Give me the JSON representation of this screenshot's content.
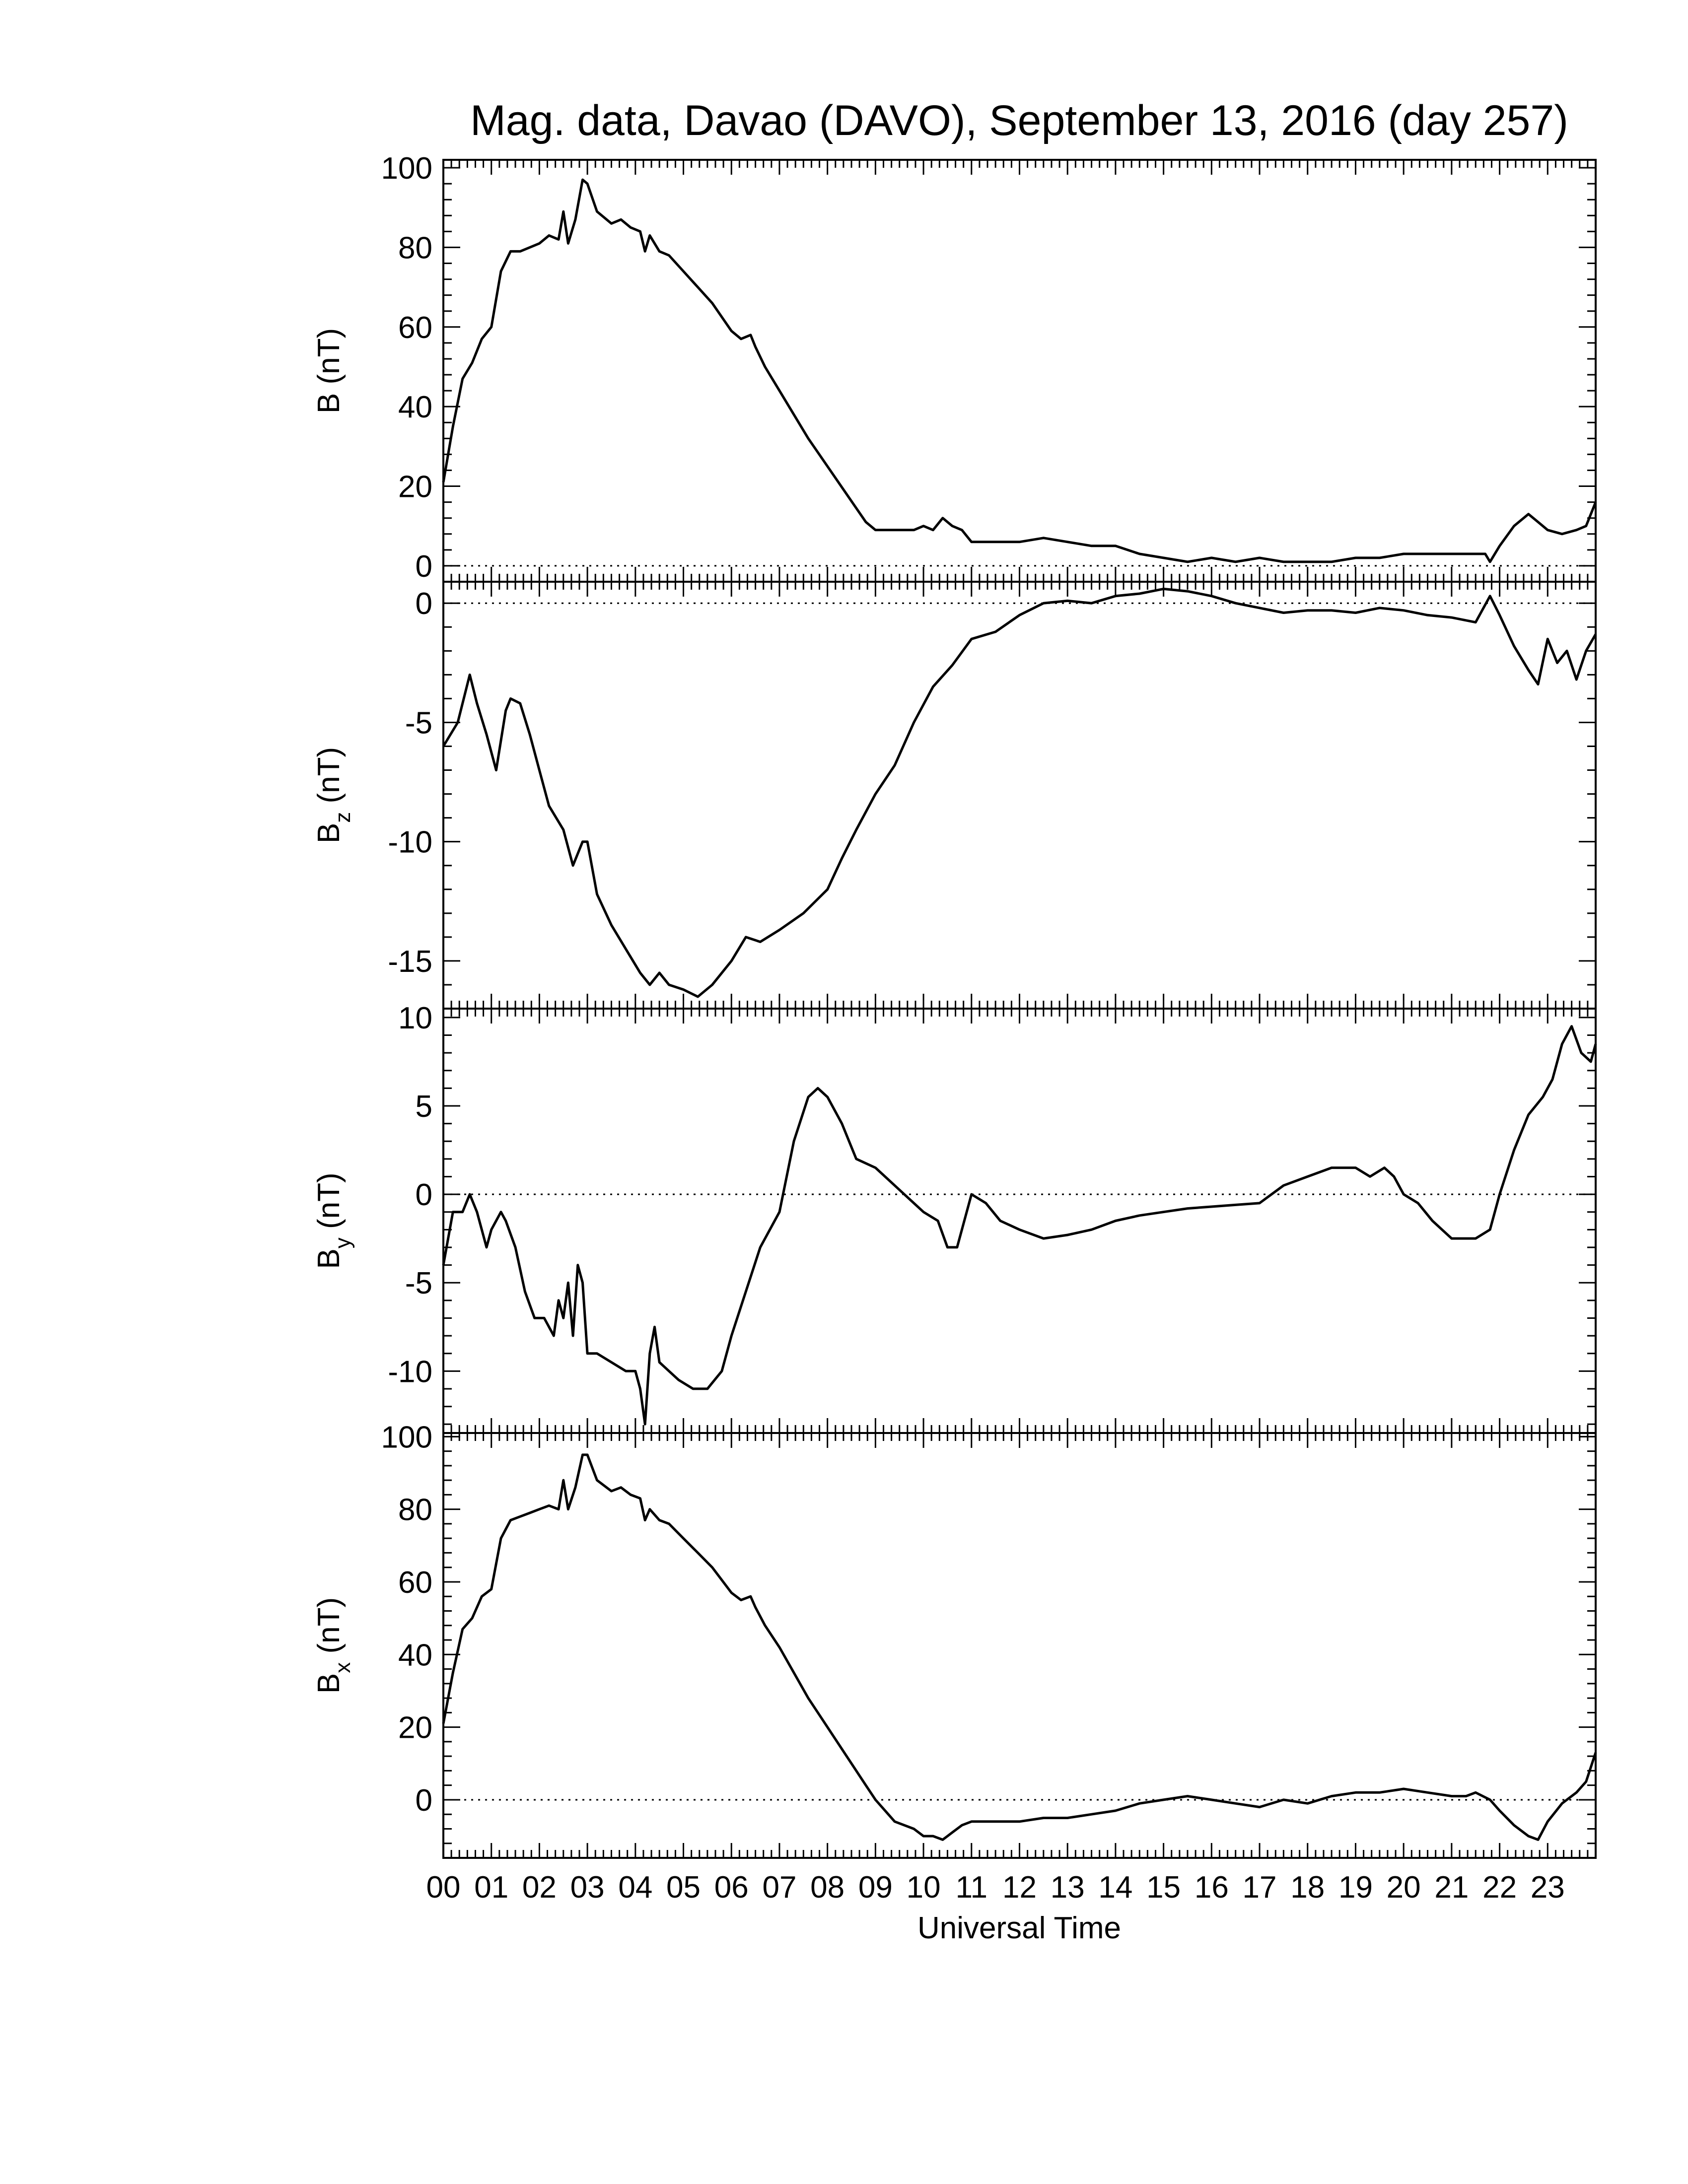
{
  "title": "Mag. data, Davao (DAVO), September 13, 2016 (day 257)",
  "xlabel": "Universal Time",
  "x_tick_labels": [
    "00",
    "01",
    "02",
    "03",
    "04",
    "05",
    "06",
    "07",
    "08",
    "09",
    "10",
    "11",
    "12",
    "13",
    "14",
    "15",
    "16",
    "17",
    "18",
    "19",
    "20",
    "21",
    "22",
    "23"
  ],
  "chart_data": [
    {
      "type": "line",
      "panel": "B",
      "ylabel": "B (nT)",
      "ylabel_main": "B",
      "ylabel_sub": "",
      "ylabel_unit": " (nT)",
      "xlim": [
        0,
        24
      ],
      "ylim": [
        -4,
        102
      ],
      "yticks": [
        0,
        20,
        40,
        60,
        80,
        100
      ],
      "zero_line": true,
      "series": [
        {
          "x": [
            0,
            0.2,
            0.4,
            0.6,
            0.8,
            1.0,
            1.2,
            1.4,
            1.6,
            1.8,
            2.0,
            2.2,
            2.4,
            2.5,
            2.6,
            2.75,
            2.9,
            3.0,
            3.2,
            3.5,
            3.7,
            3.9,
            4.1,
            4.2,
            4.3,
            4.5,
            4.7,
            5.0,
            5.3,
            5.6,
            6.0,
            6.2,
            6.4,
            6.5,
            6.7,
            7.0,
            7.3,
            7.6,
            8.0,
            8.4,
            8.8,
            9.0,
            9.4,
            9.8,
            10.0,
            10.2,
            10.4,
            10.6,
            10.8,
            11.0,
            11.5,
            12.0,
            12.5,
            13.0,
            13.5,
            14.0,
            14.5,
            15.0,
            15.5,
            16.0,
            16.5,
            17.0,
            17.5,
            18.0,
            18.5,
            19.0,
            19.5,
            20.0,
            20.5,
            21.0,
            21.5,
            21.7,
            21.8,
            22.0,
            22.3,
            22.6,
            22.8,
            23.0,
            23.3,
            23.6,
            23.8,
            24.0
          ],
          "y": [
            21,
            35,
            47,
            51,
            57,
            60,
            74,
            79,
            79,
            80,
            81,
            83,
            82,
            89,
            81,
            87,
            97,
            96,
            89,
            86,
            87,
            85,
            84,
            79,
            83,
            79,
            78,
            74,
            70,
            66,
            59,
            57,
            58,
            55,
            50,
            44,
            38,
            32,
            25,
            18,
            11,
            9,
            9,
            9,
            10,
            9,
            12,
            10,
            9,
            6,
            6,
            6,
            7,
            6,
            5,
            5,
            3,
            2,
            1,
            2,
            1,
            2,
            1,
            1,
            1,
            2,
            2,
            3,
            3,
            3,
            3,
            3,
            1,
            5,
            10,
            13,
            11,
            9,
            8,
            9,
            10,
            16
          ]
        }
      ]
    },
    {
      "type": "line",
      "panel": "Bz",
      "ylabel": "Bz (nT)",
      "ylabel_main": "B",
      "ylabel_sub": "z",
      "ylabel_unit": " (nT)",
      "xlim": [
        0,
        24
      ],
      "ylim": [
        -17,
        0.9
      ],
      "yticks": [
        -15,
        -10,
        -5,
        0
      ],
      "zero_line": true,
      "series": [
        {
          "x": [
            0,
            0.3,
            0.55,
            0.7,
            0.9,
            1.1,
            1.3,
            1.4,
            1.6,
            1.8,
            2.0,
            2.2,
            2.5,
            2.7,
            2.9,
            3.0,
            3.2,
            3.5,
            3.8,
            4.1,
            4.3,
            4.5,
            4.7,
            5.0,
            5.3,
            5.6,
            6.0,
            6.3,
            6.6,
            7.0,
            7.5,
            8.0,
            8.3,
            8.6,
            9.0,
            9.4,
            9.8,
            10.2,
            10.6,
            11.0,
            11.5,
            12.0,
            12.5,
            13.0,
            13.5,
            14.0,
            14.5,
            15.0,
            15.5,
            16.0,
            16.5,
            17.0,
            17.5,
            18.0,
            18.5,
            19.0,
            19.5,
            20.0,
            20.5,
            21.0,
            21.5,
            21.8,
            22.0,
            22.3,
            22.6,
            22.8,
            23.0,
            23.2,
            23.4,
            23.6,
            23.8,
            24.0
          ],
          "y": [
            -6,
            -5,
            -3,
            -4.2,
            -5.5,
            -7,
            -4.5,
            -4,
            -4.2,
            -5.5,
            -7,
            -8.5,
            -9.5,
            -11,
            -10,
            -10,
            -12.2,
            -13.5,
            -14.5,
            -15.5,
            -16,
            -15.5,
            -16,
            -16.2,
            -16.5,
            -16,
            -15,
            -14,
            -14.2,
            -13.7,
            -13,
            -12,
            -10.7,
            -9.5,
            -8,
            -6.8,
            -5,
            -3.5,
            -2.6,
            -1.5,
            -1.2,
            -0.5,
            0,
            0.1,
            0,
            0.3,
            0.4,
            0.6,
            0.5,
            0.3,
            0,
            -0.2,
            -0.4,
            -0.3,
            -0.3,
            -0.4,
            -0.2,
            -0.3,
            -0.5,
            -0.6,
            -0.8,
            0.3,
            -0.5,
            -1.8,
            -2.8,
            -3.4,
            -1.5,
            -2.5,
            -2,
            -3.2,
            -2,
            -1.3
          ]
        }
      ]
    },
    {
      "type": "line",
      "panel": "By",
      "ylabel": "By (nT)",
      "ylabel_main": "B",
      "ylabel_sub": "y",
      "ylabel_unit": " (nT)",
      "xlim": [
        0,
        24
      ],
      "ylim": [
        -13.5,
        10.5
      ],
      "yticks": [
        -10,
        -5,
        0,
        5,
        10
      ],
      "zero_line": true,
      "series": [
        {
          "x": [
            0,
            0.2,
            0.4,
            0.55,
            0.7,
            0.9,
            1.0,
            1.2,
            1.3,
            1.5,
            1.7,
            1.9,
            2.1,
            2.3,
            2.4,
            2.5,
            2.6,
            2.7,
            2.8,
            2.9,
            3.0,
            3.2,
            3.5,
            3.8,
            4.0,
            4.1,
            4.2,
            4.3,
            4.4,
            4.5,
            4.7,
            4.9,
            5.2,
            5.5,
            5.8,
            6.0,
            6.3,
            6.6,
            7.0,
            7.3,
            7.6,
            7.8,
            8.0,
            8.3,
            8.6,
            9.0,
            9.4,
            9.8,
            10.0,
            10.3,
            10.5,
            10.7,
            11.0,
            11.3,
            11.6,
            12.0,
            12.5,
            13.0,
            13.5,
            14.0,
            14.5,
            15.0,
            15.5,
            16.0,
            16.5,
            17.0,
            17.5,
            18.0,
            18.5,
            19.0,
            19.3,
            19.6,
            19.8,
            20.0,
            20.3,
            20.6,
            21.0,
            21.5,
            21.8,
            22.0,
            22.3,
            22.6,
            22.9,
            23.1,
            23.3,
            23.5,
            23.7,
            23.9,
            24.0
          ],
          "y": [
            -4,
            -1,
            -1,
            0,
            -1,
            -3,
            -2,
            -1,
            -1.5,
            -3,
            -5.5,
            -7,
            -7,
            -8,
            -6,
            -7,
            -5,
            -8,
            -4,
            -5,
            -9,
            -9,
            -9.5,
            -10,
            -10,
            -11,
            -13,
            -9,
            -7.5,
            -9.5,
            -10,
            -10.5,
            -11,
            -11,
            -10,
            -8,
            -5.5,
            -3,
            -1,
            3,
            5.5,
            6,
            5.5,
            4,
            2,
            1.5,
            0.5,
            -0.5,
            -1,
            -1.5,
            -3,
            -3,
            0,
            -0.5,
            -1.5,
            -2,
            -2.5,
            -2.3,
            -2,
            -1.5,
            -1.2,
            -1,
            -0.8,
            -0.7,
            -0.6,
            -0.5,
            0.5,
            1,
            1.5,
            1.5,
            1,
            1.5,
            1,
            0,
            -0.5,
            -1.5,
            -2.5,
            -2.5,
            -2,
            0,
            2.5,
            4.5,
            5.5,
            6.5,
            8.5,
            9.5,
            8,
            7.5,
            8.5
          ]
        }
      ]
    },
    {
      "type": "line",
      "panel": "Bx",
      "ylabel": "Bx (nT)",
      "ylabel_main": "B",
      "ylabel_sub": "x",
      "ylabel_unit": " (nT)",
      "xlim": [
        0,
        24
      ],
      "ylim": [
        -16,
        101
      ],
      "yticks": [
        0,
        20,
        40,
        60,
        80,
        100
      ],
      "zero_line": true,
      "series": [
        {
          "x": [
            0,
            0.2,
            0.4,
            0.6,
            0.8,
            1.0,
            1.2,
            1.4,
            1.6,
            1.8,
            2.0,
            2.2,
            2.4,
            2.5,
            2.6,
            2.75,
            2.9,
            3.0,
            3.2,
            3.5,
            3.7,
            3.9,
            4.1,
            4.2,
            4.3,
            4.5,
            4.7,
            5.0,
            5.3,
            5.6,
            6.0,
            6.2,
            6.4,
            6.5,
            6.7,
            7.0,
            7.3,
            7.6,
            8.0,
            8.4,
            8.8,
            9.0,
            9.4,
            9.8,
            10.0,
            10.2,
            10.4,
            10.6,
            10.8,
            11.0,
            11.5,
            12.0,
            12.5,
            13.0,
            13.5,
            14.0,
            14.5,
            15.0,
            15.5,
            16.0,
            16.5,
            17.0,
            17.5,
            18.0,
            18.5,
            19.0,
            19.5,
            20.0,
            20.5,
            21.0,
            21.3,
            21.5,
            21.8,
            22.0,
            22.3,
            22.6,
            22.8,
            23.0,
            23.3,
            23.6,
            23.8,
            24.0
          ],
          "y": [
            21,
            35,
            47,
            50,
            56,
            58,
            72,
            77,
            78,
            79,
            80,
            81,
            80,
            88,
            80,
            86,
            95,
            95,
            88,
            85,
            86,
            84,
            83,
            77,
            80,
            77,
            76,
            72,
            68,
            64,
            57,
            55,
            56,
            53,
            48,
            42,
            35,
            28,
            20,
            12,
            4,
            0,
            -6,
            -8,
            -10,
            -10,
            -11,
            -9,
            -7,
            -6,
            -6,
            -6,
            -5,
            -5,
            -4,
            -3,
            -1,
            0,
            1,
            0,
            -1,
            -2,
            0,
            -1,
            1,
            2,
            2,
            3,
            2,
            1,
            1,
            2,
            0,
            -3,
            -7,
            -10,
            -11,
            -6,
            -1,
            2,
            5,
            13
          ]
        }
      ]
    }
  ]
}
